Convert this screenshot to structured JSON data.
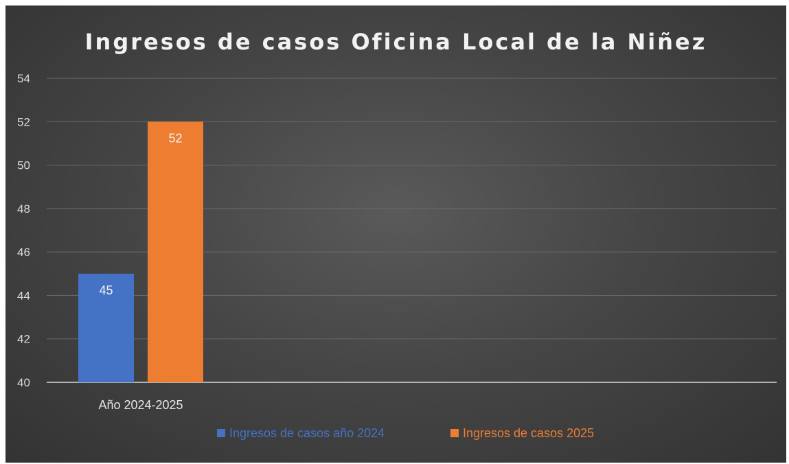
{
  "chart_data": {
    "type": "bar",
    "title": "Ingresos de casos Oficina Local de la Niñez",
    "categories": [
      "Año 2024-2025"
    ],
    "series": [
      {
        "name": "Ingresos de casos año 2024",
        "values": [
          45
        ],
        "color": "#4472c4"
      },
      {
        "name": "Ingresos de casos 2025",
        "values": [
          52
        ],
        "color": "#ed7d31"
      }
    ],
    "ylim": [
      40,
      54
    ],
    "yticks": [
      40,
      42,
      44,
      46,
      48,
      50,
      52,
      54
    ],
    "grid": true,
    "data_labels": true,
    "legend_position": "bottom"
  }
}
